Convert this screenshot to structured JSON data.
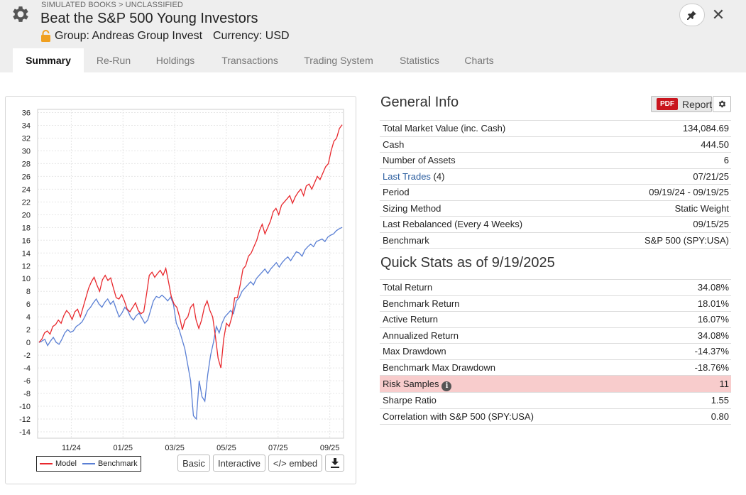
{
  "header": {
    "breadcrumb": "SIMULATED BOOKS > UNCLASSIFIED",
    "title": "Beat the S&P 500 Young Investors",
    "group": "Group: Andreas Group Invest",
    "currency": "Currency: USD",
    "icons": [
      "gear-icon",
      "lock-icon",
      "pin-icon",
      "close-icon"
    ]
  },
  "tabs": [
    {
      "label": "Summary",
      "active": true
    },
    {
      "label": "Re-Run"
    },
    {
      "label": "Holdings"
    },
    {
      "label": "Transactions"
    },
    {
      "label": "Trading System"
    },
    {
      "label": "Statistics"
    },
    {
      "label": "Charts"
    }
  ],
  "chart_controls": {
    "legend_model": "Model",
    "legend_benchmark": "Benchmark",
    "basic": "Basic",
    "interactive": "Interactive",
    "embed": "</> embed"
  },
  "chart_data": {
    "type": "line",
    "x_ticks": [
      "11/24",
      "01/25",
      "03/25",
      "05/25",
      "07/25",
      "09/25"
    ],
    "y_ticks": [
      36,
      34,
      32,
      30,
      28,
      26,
      24,
      22,
      20,
      18,
      16,
      14,
      12,
      10,
      8,
      6,
      4,
      2,
      0,
      -2,
      -4,
      -6,
      -8,
      -10,
      -12,
      -14
    ],
    "ylim": [
      -15,
      36.5
    ],
    "grid": true,
    "legend_position": "bottom-left",
    "series": [
      {
        "name": "Model",
        "color": "#e8282d",
        "values": [
          0,
          0.5,
          1.5,
          1.8,
          1.3,
          2.5,
          2.8,
          3.5,
          3.0,
          4.2,
          5.0,
          4.5,
          3.6,
          4.8,
          5.2,
          4.0,
          5.5,
          7.0,
          8.5,
          9.5,
          10.2,
          9.0,
          8.0,
          9.8,
          10.5,
          9.7,
          10.1,
          8.5,
          7.0,
          6.8,
          7.5,
          6.5,
          5.2,
          4.8,
          5.5,
          6.2,
          5.0,
          4.5,
          4.8,
          7.5,
          10.5,
          11.0,
          10.2,
          10.8,
          11.3,
          10.5,
          11.6,
          9.5,
          7.2,
          6.0,
          5.5,
          4.0,
          2.0,
          3.5,
          4.0,
          5.5,
          6.0,
          3.5,
          2.2,
          3.5,
          5.5,
          6.5,
          5.0,
          4.0,
          1.0,
          -2.5,
          -4.0,
          0.5,
          3.0,
          2.5,
          4.0,
          7.0,
          7.0,
          9.0,
          11.5,
          12.0,
          13.5,
          14.0,
          15.0,
          16.0,
          17.5,
          18.5,
          17.0,
          18.0,
          19.0,
          20.5,
          21.0,
          20.0,
          21.5,
          22.0,
          22.5,
          23.0,
          21.8,
          22.8,
          23.5,
          24.0,
          23.0,
          24.5,
          24.8,
          24.0,
          25.0,
          26.0,
          25.5,
          26.5,
          27.5,
          28.0,
          30.0,
          31.5,
          32.0,
          33.5,
          34.1
        ]
      },
      {
        "name": "Benchmark",
        "color": "#5a7fd4",
        "values": [
          0,
          0.2,
          0.5,
          -0.5,
          0.2,
          0.8,
          0,
          -0.3,
          0.5,
          1.5,
          2.0,
          1.6,
          1.8,
          2.5,
          2.8,
          3.2,
          4.0,
          5.0,
          5.5,
          6.2,
          6.8,
          6.0,
          5.5,
          6.3,
          6.8,
          6.0,
          6.5,
          5.2,
          4.0,
          4.6,
          5.5,
          5.0,
          4.0,
          3.5,
          4.2,
          4.6,
          3.8,
          3.0,
          3.5,
          5.0,
          6.5,
          7.2,
          7.0,
          7.4,
          7.0,
          6.5,
          7.1,
          6.0,
          3.0,
          2.0,
          0.5,
          -1.0,
          -3.5,
          -6.0,
          -11.5,
          -12.0,
          -6.0,
          -8.5,
          -9.2,
          -5.0,
          -2.0,
          0,
          2.5,
          1.5,
          3.0,
          4.0,
          4.5,
          5.0,
          4.5,
          6.5,
          7.0,
          8.0,
          8.5,
          9.0,
          9.5,
          9.0,
          10.0,
          10.5,
          11.0,
          11.5,
          10.8,
          11.5,
          12.0,
          12.5,
          11.8,
          12.5,
          13.0,
          13.4,
          12.8,
          13.5,
          14.2,
          14.0,
          13.5,
          14.5,
          15.0,
          15.4,
          15.0,
          15.8,
          16.0,
          16.2,
          15.8,
          16.5,
          16.8,
          17.0,
          17.5,
          17.8,
          18.01
        ]
      }
    ]
  },
  "general_info": {
    "title": "General Info",
    "report_badge": "PDF",
    "report_label": "Report",
    "rows": [
      {
        "k": "Total Market Value (inc. Cash)",
        "v": "134,084.69"
      },
      {
        "k": "Cash",
        "v": "444.50"
      },
      {
        "k": "Number of Assets",
        "v": "6"
      },
      {
        "k": "Last Trades",
        "k_suffix": " (4)",
        "v": "07/21/25",
        "link": true
      },
      {
        "k": "Period",
        "v": "09/19/24 - 09/19/25"
      },
      {
        "k": "Sizing Method",
        "v": "Static Weight"
      },
      {
        "k": "Last Rebalanced (Every 4 Weeks)",
        "v": "09/15/25"
      },
      {
        "k": "Benchmark",
        "v": "S&P 500 (SPY:USA)"
      }
    ]
  },
  "quick_stats": {
    "title": "Quick Stats as of 9/19/2025",
    "rows": [
      {
        "k": "Total Return",
        "v": "34.08%"
      },
      {
        "k": "Benchmark Return",
        "v": "18.01%"
      },
      {
        "k": "Active Return",
        "v": "16.07%"
      },
      {
        "k": "Annualized Return",
        "v": "34.08%"
      },
      {
        "k": "Max Drawdown",
        "v": "-14.37%",
        "neg": true
      },
      {
        "k": "Benchmark Max Drawdown",
        "v": "-18.76%",
        "neg": true
      },
      {
        "k": "Risk Samples",
        "v": "11",
        "hl": true,
        "info": true
      },
      {
        "k": "Sharpe Ratio",
        "v": "1.55"
      },
      {
        "k": "Correlation with S&P 500 (SPY:USA)",
        "v": "0.80"
      }
    ]
  }
}
